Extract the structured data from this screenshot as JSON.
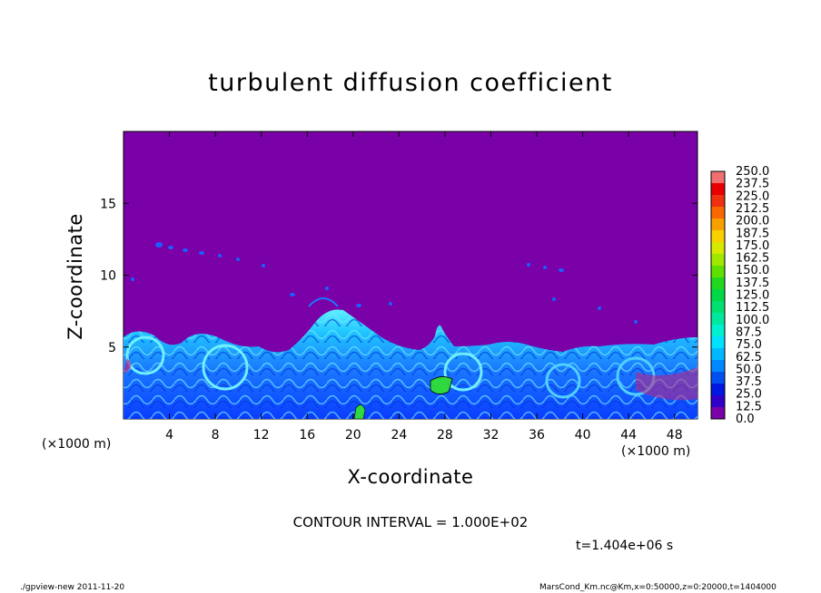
{
  "chart_data": {
    "type": "heatmap",
    "title": "turbulent diffusion coefficient",
    "xlabel": "X-coordinate",
    "ylabel": "Z-coordinate",
    "x_unit": "(×1000 m)",
    "xlim": [
      0,
      50
    ],
    "ylim": [
      0,
      20
    ],
    "x_ticks": [
      4,
      8,
      12,
      16,
      20,
      24,
      28,
      32,
      36,
      40,
      44,
      48
    ],
    "y_ticks": [
      5,
      10,
      15
    ],
    "colorbar": {
      "levels": [
        "0.0",
        "12.5",
        "25.0",
        "37.5",
        "50.0",
        "62.5",
        "75.0",
        "87.5",
        "100.0",
        "112.5",
        "125.0",
        "137.5",
        "150.0",
        "162.5",
        "175.0",
        "187.5",
        "200.0",
        "212.5",
        "225.0",
        "237.5",
        "250.0"
      ],
      "colors": [
        "#7a00a8",
        "#3000c8",
        "#0018e0",
        "#0050f0",
        "#0088ff",
        "#00b8ff",
        "#00e0ff",
        "#00f0d0",
        "#00e8a0",
        "#00e070",
        "#00d848",
        "#20d820",
        "#60e000",
        "#a0e800",
        "#d8e800",
        "#f8d000",
        "#f8a000",
        "#f86800",
        "#f03010",
        "#e80000",
        "#f07070"
      ]
    },
    "contour_interval": "CONTOUR INTERVAL = 1.000E+02",
    "time": "t=1.404e+06 s"
  },
  "footer": {
    "left": "./gpview-new   2011-11-20",
    "right": "MarsCond_Km.nc@Km,x=0:50000,z=0:20000,t=1404000"
  }
}
